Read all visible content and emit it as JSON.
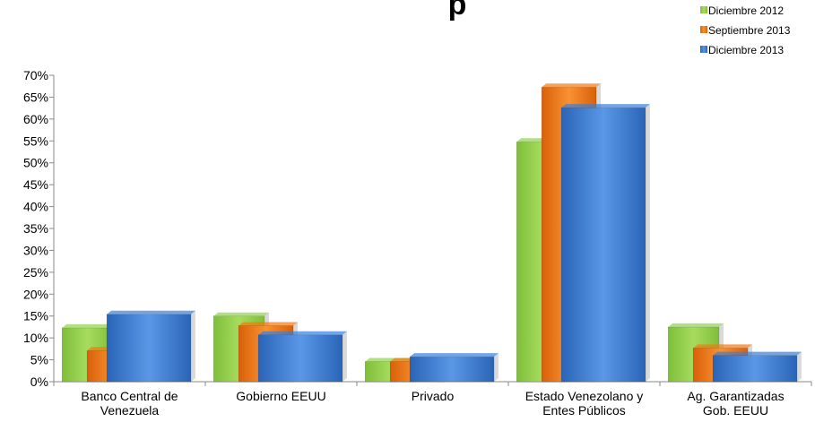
{
  "chart_data": {
    "type": "bar",
    "title": "p",
    "categories": [
      [
        "Banco Central de",
        "Venezuela"
      ],
      [
        "Gobierno EEUU"
      ],
      [
        "Privado"
      ],
      [
        "Estado Venezolano y",
        "Entes Públicos"
      ],
      [
        "Ag. Garantizadas",
        "Gob. EEUU"
      ]
    ],
    "series": [
      {
        "name": "Diciembre 2012",
        "color": "#92d050",
        "values": [
          12.3,
          15.0,
          4.6,
          54.8,
          12.5
        ]
      },
      {
        "name": "Septiembre 2013",
        "color": "#f07a10",
        "values": [
          7.1,
          12.8,
          4.6,
          67.3,
          7.7
        ]
      },
      {
        "name": "Diciembre 2013",
        "color": "#3b7dd8",
        "values": [
          15.4,
          10.7,
          5.7,
          62.6,
          6.0
        ]
      }
    ],
    "yticks": [
      "0%",
      "5%",
      "10%",
      "15%",
      "20%",
      "25%",
      "30%",
      "35%",
      "40%",
      "45%",
      "50%",
      "55%",
      "60%",
      "65%",
      "70%"
    ],
    "ylim": [
      0,
      70
    ],
    "legend": "top-right",
    "grid": false
  }
}
